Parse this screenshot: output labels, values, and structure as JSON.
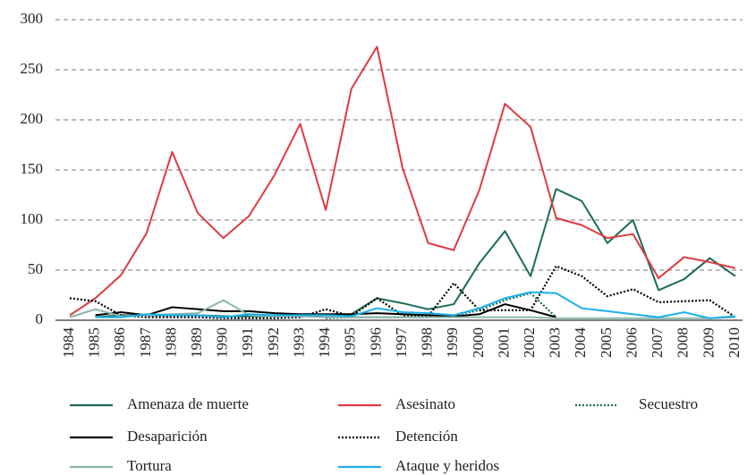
{
  "chart_data": {
    "type": "line",
    "categories": [
      "1984",
      "1985",
      "1986",
      "1987",
      "1988",
      "1989",
      "1990",
      "1991",
      "1992",
      "1993",
      "1994",
      "1995",
      "1996",
      "1997",
      "1998",
      "1999",
      "2000",
      "2001",
      "2002",
      "2003",
      "2004",
      "2005",
      "2006",
      "2007",
      "2008",
      "2009",
      "2010"
    ],
    "ylim": [
      0,
      300
    ],
    "yticks": [
      0,
      50,
      100,
      150,
      200,
      250,
      300
    ],
    "grid": true,
    "legend": "bottom",
    "series": [
      {
        "name": "Amenaza de muerte",
        "color": "#1a6b5a",
        "dash": "solid",
        "values": [
          null,
          3,
          5,
          5,
          5,
          5,
          4,
          4,
          4,
          4,
          5,
          6,
          22,
          17,
          11,
          16,
          57,
          89,
          44,
          131,
          119,
          77,
          100,
          30,
          41,
          62,
          44
        ]
      },
      {
        "name": "Asesinato",
        "color": "#e03a3e",
        "dash": "solid",
        "values": [
          5,
          22,
          45,
          87,
          168,
          107,
          82,
          104,
          145,
          196,
          110,
          231,
          273,
          152,
          77,
          70,
          130,
          216,
          193,
          102,
          95,
          82,
          86,
          42,
          63,
          58,
          52
        ]
      },
      {
        "name": "Secuestro",
        "color": "#1a6b5a",
        "dash": "dotted",
        "values": [
          null,
          null,
          null,
          null,
          null,
          null,
          null,
          null,
          null,
          null,
          2,
          3,
          3,
          3,
          3,
          5,
          10,
          20,
          27,
          3,
          null,
          null,
          null,
          null,
          null,
          null,
          null
        ]
      },
      {
        "name": "Desaparición",
        "color": "#000000",
        "dash": "solid",
        "values": [
          null,
          5,
          8,
          5,
          13,
          11,
          9,
          9,
          7,
          6,
          6,
          6,
          7,
          6,
          5,
          4,
          6,
          16,
          10,
          3,
          null,
          null,
          null,
          null,
          null,
          null,
          null
        ]
      },
      {
        "name": "Detención",
        "color": "#000000",
        "dash": "dotted",
        "values": [
          22,
          19,
          5,
          3,
          3,
          3,
          2,
          2,
          2,
          3,
          11,
          4,
          22,
          5,
          4,
          37,
          10,
          10,
          10,
          54,
          44,
          24,
          31,
          18,
          19,
          20,
          3
        ]
      },
      {
        "name": "Tortura",
        "color": "#8ab5a8",
        "dash": "solid",
        "values": [
          3,
          11,
          4,
          5,
          6,
          7,
          20,
          5,
          4,
          4,
          3,
          3,
          3,
          3,
          3,
          3,
          3,
          3,
          3,
          2,
          2,
          2,
          2,
          2,
          2,
          2,
          3
        ]
      },
      {
        "name": "Ataque y heridos",
        "color": "#1ab0e8",
        "dash": "solid",
        "values": [
          null,
          3,
          3,
          6,
          5,
          5,
          3,
          6,
          5,
          5,
          5,
          4,
          12,
          8,
          7,
          5,
          12,
          22,
          28,
          27,
          12,
          9,
          6,
          3,
          8,
          2,
          4
        ]
      }
    ]
  }
}
